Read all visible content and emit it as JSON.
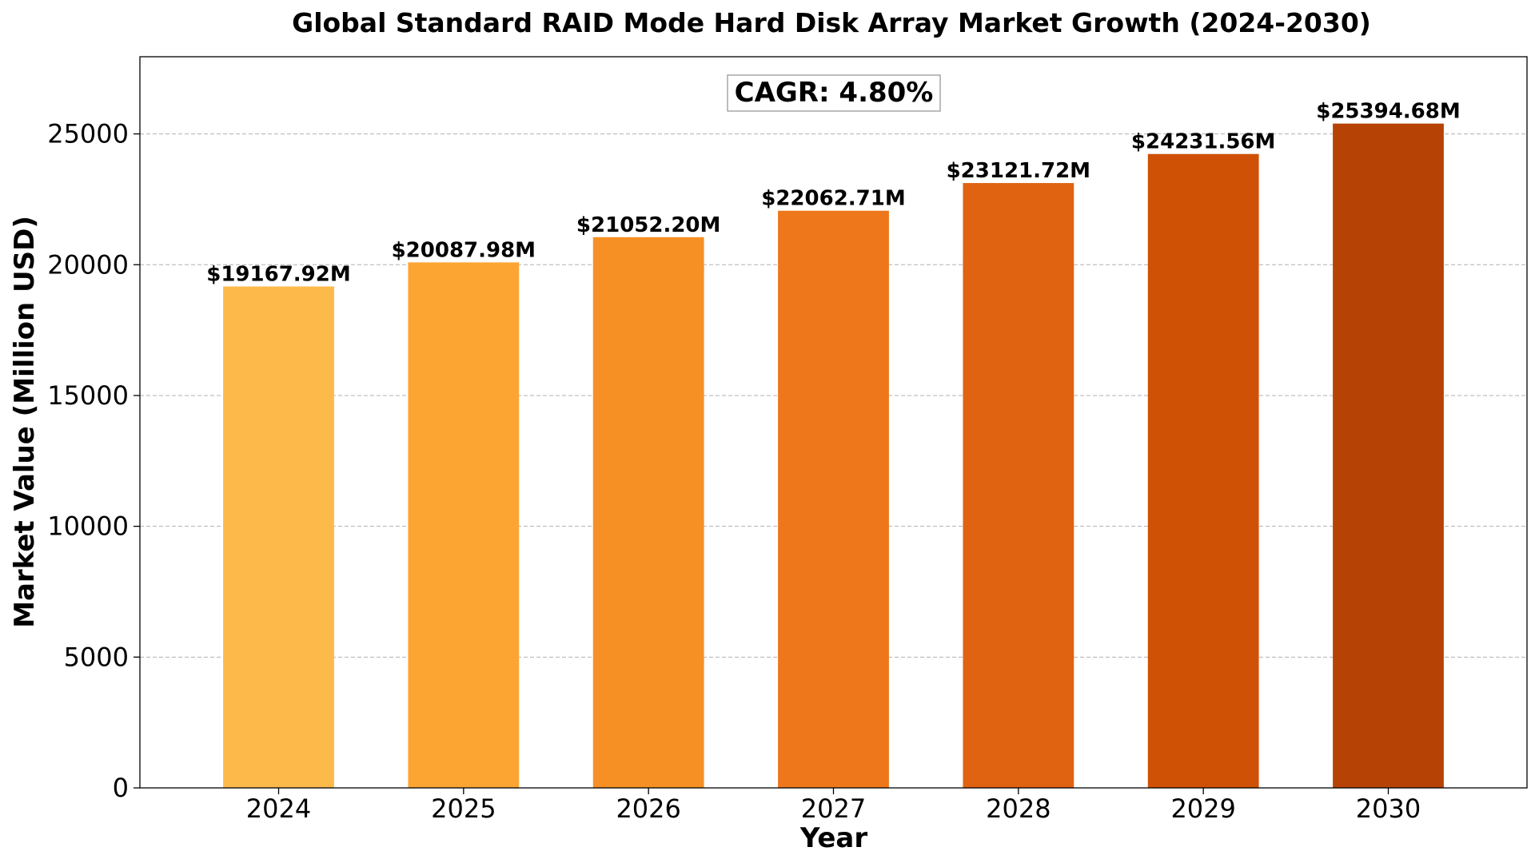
{
  "chart_data": {
    "type": "bar",
    "title": "Global Standard RAID Mode Hard Disk Array Market Growth (2024-2030)",
    "xlabel": "Year",
    "ylabel": "Market Value (Million USD)",
    "categories": [
      "2024",
      "2025",
      "2026",
      "2027",
      "2028",
      "2029",
      "2030"
    ],
    "values": [
      19167.92,
      20087.98,
      21052.2,
      22062.71,
      23121.72,
      24231.56,
      25394.68
    ],
    "data_labels": [
      "$19167.92M",
      "$20087.98M",
      "$21052.20M",
      "$22062.71M",
      "$23121.72M",
      "$24231.56M",
      "$25394.68M"
    ],
    "bar_colors": [
      "#FDB94A",
      "#FCA532",
      "#F79024",
      "#EE771B",
      "#E06311",
      "#CF5105",
      "#B64305"
    ],
    "ylim": [
      0,
      27950
    ],
    "yticks": [
      0,
      5000,
      10000,
      15000,
      20000,
      25000
    ],
    "ytick_labels": [
      "0",
      "5000",
      "10000",
      "15000",
      "20000",
      "25000"
    ],
    "grid": true,
    "grid_axis": "y",
    "annotation": "CAGR: 4.80%"
  }
}
